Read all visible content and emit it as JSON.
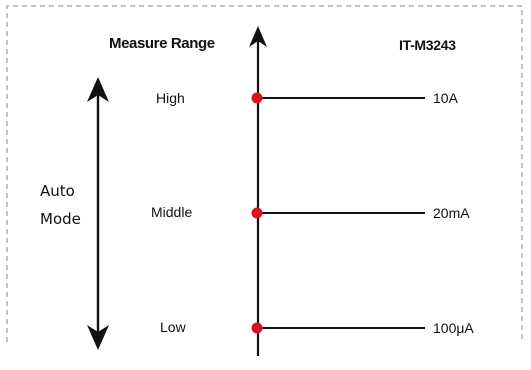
{
  "diagram": {
    "title": "Measure Range",
    "model": "IT-M3243",
    "mode_label_line1": "Auto",
    "mode_label_line2": "Mode",
    "levels": [
      {
        "name": "High",
        "value": "10A"
      },
      {
        "name": "Middle",
        "value": "20mA"
      },
      {
        "name": "Low",
        "value": "100μA"
      }
    ],
    "colors": {
      "line": "#111111",
      "dot": "#d7141e",
      "border": "#9a9a9a"
    }
  }
}
